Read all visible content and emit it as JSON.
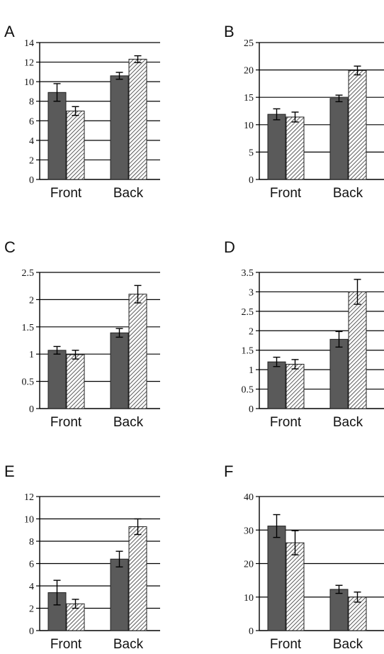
{
  "chart_data": [
    {
      "type": "bar",
      "panel_label": "A",
      "categories": [
        "Front",
        "Back"
      ],
      "series": [
        {
          "style": "solid",
          "color": "#5a5a5a",
          "values": [
            8.9,
            10.6
          ],
          "errors": [
            0.9,
            0.35
          ]
        },
        {
          "style": "hatched",
          "color": "#cfcfcf",
          "values": [
            7.0,
            12.3
          ],
          "errors": [
            0.45,
            0.35
          ]
        }
      ],
      "ylim": [
        0,
        14
      ],
      "yticks": [
        "0",
        "2",
        "4",
        "6",
        "8",
        "10",
        "12",
        "14"
      ],
      "grid": true
    },
    {
      "type": "bar",
      "panel_label": "B",
      "categories": [
        "Front",
        "Back"
      ],
      "series": [
        {
          "style": "solid",
          "color": "#5a5a5a",
          "values": [
            11.9,
            14.8
          ],
          "errors": [
            1.0,
            0.6
          ]
        },
        {
          "style": "hatched",
          "color": "#cfcfcf",
          "values": [
            11.4,
            19.9
          ],
          "errors": [
            0.9,
            0.8
          ]
        }
      ],
      "ylim": [
        0,
        25
      ],
      "yticks": [
        "0",
        "5",
        "10",
        "15",
        "20",
        "25"
      ],
      "grid": true
    },
    {
      "type": "bar",
      "panel_label": "C",
      "categories": [
        "Front",
        "Back"
      ],
      "series": [
        {
          "style": "solid",
          "color": "#5a5a5a",
          "values": [
            1.07,
            1.39
          ],
          "errors": [
            0.07,
            0.08
          ]
        },
        {
          "style": "hatched",
          "color": "#cfcfcf",
          "values": [
            0.99,
            2.1
          ],
          "errors": [
            0.08,
            0.16
          ]
        }
      ],
      "ylim": [
        0,
        2.5
      ],
      "yticks": [
        "0",
        "0.5",
        "1",
        "1.5",
        "2",
        "2.5"
      ],
      "grid": true
    },
    {
      "type": "bar",
      "panel_label": "D",
      "categories": [
        "Front",
        "Back"
      ],
      "series": [
        {
          "style": "solid",
          "color": "#5a5a5a",
          "values": [
            1.2,
            1.78
          ],
          "errors": [
            0.12,
            0.2
          ]
        },
        {
          "style": "hatched",
          "color": "#cfcfcf",
          "values": [
            1.14,
            3.0
          ],
          "errors": [
            0.12,
            0.32
          ]
        }
      ],
      "ylim": [
        0,
        3.5
      ],
      "yticks": [
        "0",
        "0.5",
        "1",
        "1.5",
        "2",
        "2.5",
        "3",
        "3.5"
      ],
      "grid": true
    },
    {
      "type": "bar",
      "panel_label": "E",
      "categories": [
        "Front",
        "Back"
      ],
      "series": [
        {
          "style": "solid",
          "color": "#5a5a5a",
          "values": [
            3.4,
            6.4
          ],
          "errors": [
            1.1,
            0.7
          ]
        },
        {
          "style": "hatched",
          "color": "#cfcfcf",
          "values": [
            2.4,
            9.3
          ],
          "errors": [
            0.4,
            0.7
          ]
        }
      ],
      "ylim": [
        0,
        12
      ],
      "yticks": [
        "0",
        "2",
        "4",
        "6",
        "8",
        "10",
        "12"
      ],
      "grid": true
    },
    {
      "type": "bar",
      "panel_label": "F",
      "categories": [
        "Front",
        "Back"
      ],
      "series": [
        {
          "style": "solid",
          "color": "#5a5a5a",
          "values": [
            31.2,
            12.3
          ],
          "errors": [
            3.4,
            1.2
          ]
        },
        {
          "style": "hatched",
          "color": "#cfcfcf",
          "values": [
            26.2,
            10.0
          ],
          "errors": [
            3.6,
            1.5
          ]
        }
      ],
      "ylim": [
        0,
        40
      ],
      "yticks": [
        "0",
        "10",
        "20",
        "30",
        "40"
      ],
      "grid": true
    }
  ]
}
